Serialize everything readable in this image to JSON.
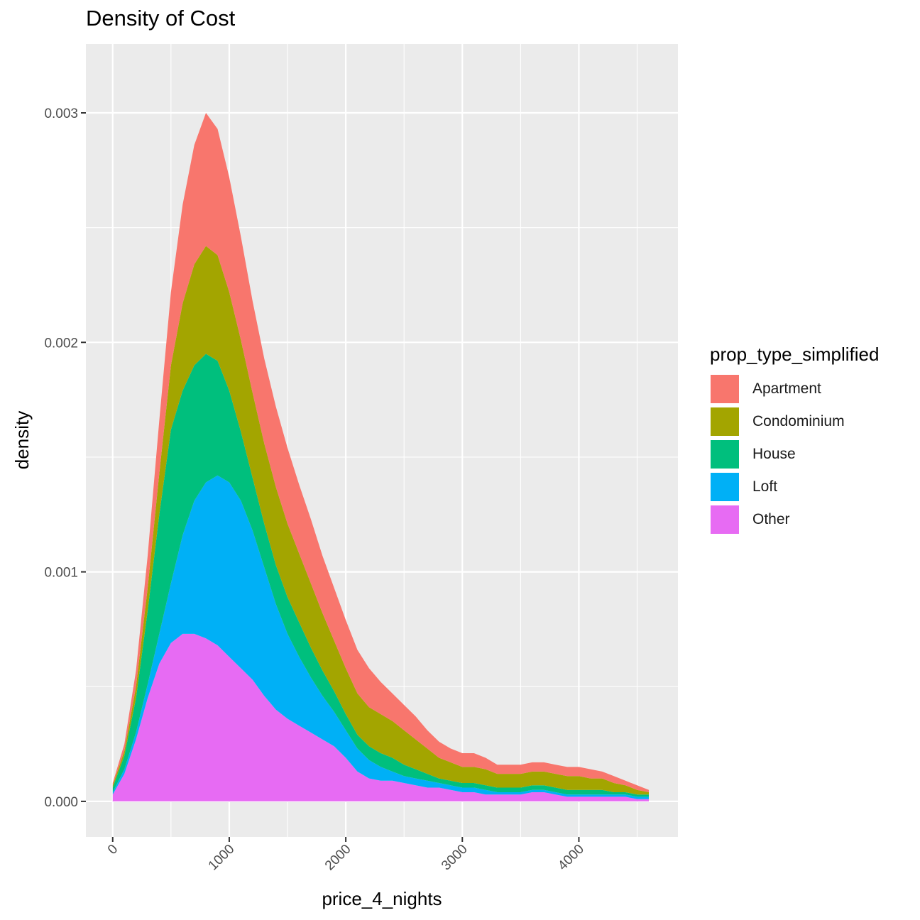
{
  "chart_data": {
    "type": "area",
    "stacked": true,
    "title": "Density of Cost",
    "xlabel": "price_4_nights",
    "ylabel": "density",
    "xlim": [
      -230,
      4850
    ],
    "ylim": [
      -0.000155,
      0.0033
    ],
    "x_ticks": [
      0,
      1000,
      2000,
      3000,
      4000
    ],
    "x_tick_labels": [
      "0",
      "1000",
      "2000",
      "3000",
      "4000"
    ],
    "y_ticks": [
      0.0,
      0.001,
      0.002,
      0.003
    ],
    "y_tick_labels": [
      "0.000",
      "0.001",
      "0.002",
      "0.003"
    ],
    "grid": true,
    "legend": {
      "title": "prop_type_simplified",
      "position": "right",
      "items": [
        "Apartment",
        "Condominium",
        "House",
        "Loft",
        "Other"
      ]
    },
    "x": [
      0,
      100,
      200,
      300,
      400,
      500,
      600,
      700,
      800,
      900,
      1000,
      1100,
      1200,
      1300,
      1400,
      1500,
      1600,
      1700,
      1800,
      1900,
      2000,
      2100,
      2200,
      2300,
      2400,
      2500,
      2600,
      2700,
      2800,
      2900,
      3000,
      3100,
      3200,
      3300,
      3400,
      3500,
      3600,
      3700,
      3800,
      3900,
      4000,
      4100,
      4200,
      4300,
      4400,
      4500,
      4600
    ],
    "series": [
      {
        "name": "Other",
        "color": "#E76BF3",
        "values": [
          3e-05,
          0.00012,
          0.00027,
          0.00045,
          0.0006,
          0.00069,
          0.00073,
          0.00073,
          0.00071,
          0.00068,
          0.00063,
          0.00058,
          0.00053,
          0.00046,
          0.0004,
          0.00036,
          0.00033,
          0.0003,
          0.00027,
          0.00024,
          0.00019,
          0.00013,
          0.0001,
          9e-05,
          9e-05,
          8e-05,
          7e-05,
          6e-05,
          6e-05,
          5e-05,
          4e-05,
          4e-05,
          3e-05,
          3e-05,
          3e-05,
          3e-05,
          4e-05,
          4e-05,
          3e-05,
          2e-05,
          2e-05,
          2e-05,
          2e-05,
          2e-05,
          2e-05,
          1e-05,
          1e-05
        ]
      },
      {
        "name": "Loft",
        "color": "#00B0F6",
        "values": [
          1e-05,
          2e-05,
          3e-05,
          6e-05,
          0.00013,
          0.00026,
          0.00043,
          0.00058,
          0.00068,
          0.00074,
          0.00076,
          0.00073,
          0.00065,
          0.00056,
          0.00046,
          0.00037,
          0.0003,
          0.00024,
          0.00019,
          0.00015,
          0.00012,
          0.0001,
          8e-05,
          6e-05,
          4e-05,
          3e-05,
          3e-05,
          3e-05,
          2e-05,
          2e-05,
          2e-05,
          2e-05,
          2e-05,
          1e-05,
          1e-05,
          1e-05,
          1e-05,
          1e-05,
          1e-05,
          1e-05,
          1e-05,
          1e-05,
          1e-05,
          1e-05,
          1e-05,
          1e-05,
          1e-05
        ]
      },
      {
        "name": "House",
        "color": "#00BF7D",
        "values": [
          2e-05,
          6e-05,
          0.00015,
          0.00032,
          0.00052,
          0.00067,
          0.00063,
          0.00059,
          0.00056,
          0.0005,
          0.0004,
          0.0003,
          0.00023,
          0.00019,
          0.00017,
          0.00016,
          0.00015,
          0.00013,
          0.00011,
          9e-05,
          7e-05,
          6e-05,
          6e-05,
          6e-05,
          6e-05,
          5e-05,
          4e-05,
          3e-05,
          2e-05,
          2e-05,
          2e-05,
          2e-05,
          2e-05,
          2e-05,
          2e-05,
          2e-05,
          2e-05,
          2e-05,
          2e-05,
          2e-05,
          2e-05,
          2e-05,
          2e-05,
          1e-05,
          1e-05,
          1e-05,
          1e-05
        ]
      },
      {
        "name": "Condominium",
        "color": "#A3A500",
        "values": [
          1e-05,
          2e-05,
          5e-05,
          0.0001,
          0.00018,
          0.00028,
          0.00038,
          0.00044,
          0.00047,
          0.00046,
          0.00043,
          0.0004,
          0.00037,
          0.00035,
          0.00034,
          0.00032,
          0.0003,
          0.00028,
          0.00025,
          0.00022,
          0.0002,
          0.00018,
          0.00017,
          0.00017,
          0.00016,
          0.00015,
          0.00013,
          0.00011,
          9e-05,
          8e-05,
          7e-05,
          7e-05,
          7e-05,
          6e-05,
          6e-05,
          6e-05,
          6e-05,
          6e-05,
          6e-05,
          6e-05,
          6e-05,
          5e-05,
          5e-05,
          4e-05,
          3e-05,
          2e-05,
          1e-05
        ]
      },
      {
        "name": "Apartment",
        "color": "#F8766D",
        "values": [
          1e-05,
          3e-05,
          7e-05,
          0.00014,
          0.00023,
          0.00032,
          0.00043,
          0.00052,
          0.00058,
          0.00055,
          0.0005,
          0.00045,
          0.0004,
          0.00037,
          0.00035,
          0.00033,
          0.0003,
          0.00028,
          0.00025,
          0.00023,
          0.00021,
          0.00019,
          0.00017,
          0.00014,
          0.00012,
          0.00011,
          0.0001,
          8e-05,
          7e-05,
          6e-05,
          6e-05,
          6e-05,
          5e-05,
          4e-05,
          4e-05,
          4e-05,
          4e-05,
          4e-05,
          4e-05,
          4e-05,
          4e-05,
          4e-05,
          3e-05,
          3e-05,
          2e-05,
          2e-05,
          1e-05
        ]
      }
    ]
  }
}
